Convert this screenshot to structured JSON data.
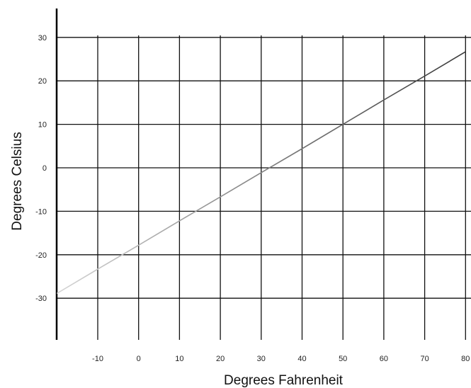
{
  "chart_data": {
    "type": "line",
    "xlabel": "Degrees Fahrenheit",
    "ylabel": "Degrees Celsius",
    "x_ticks": [
      -10,
      0,
      10,
      20,
      30,
      40,
      50,
      60,
      70,
      80
    ],
    "x_tick_labels": [
      "-10",
      "0",
      "10",
      "20",
      "30",
      "40",
      "50",
      "60",
      "70",
      "80"
    ],
    "y_ticks": [
      30,
      20,
      10,
      0,
      -10,
      -20,
      -30
    ],
    "y_tick_labels": [
      "30",
      "20",
      "10",
      "0",
      "-10",
      "-20",
      "-30"
    ],
    "xlim": [
      -20,
      80
    ],
    "ylim": [
      -40,
      37
    ],
    "grid": true,
    "series": [
      {
        "x": [
          -20,
          -10,
          0,
          10,
          20,
          30,
          40,
          50,
          60,
          70,
          80
        ],
        "y": [
          -28.9,
          -23.3,
          -17.8,
          -12.2,
          -6.7,
          -1.1,
          4.4,
          10.0,
          15.6,
          21.1,
          26.7
        ],
        "color": "#555555"
      }
    ]
  }
}
